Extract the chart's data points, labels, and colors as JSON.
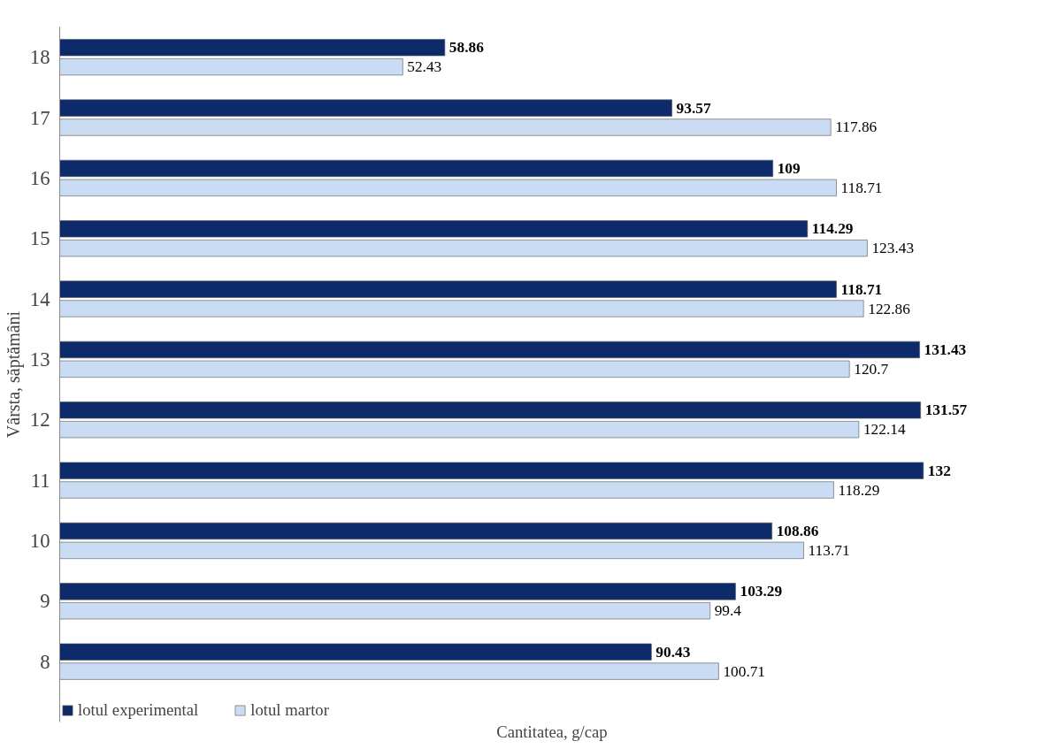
{
  "chart_data": {
    "type": "bar",
    "orientation": "horizontal",
    "ylabel": "Vârsta, săptămâni",
    "xlabel": "Cantitatea, g/cap",
    "categories": [
      "18",
      "17",
      "16",
      "15",
      "14",
      "13",
      "12",
      "11",
      "10",
      "9",
      "8"
    ],
    "series": [
      {
        "name": "lotul experimental",
        "color": "#0d2a6b",
        "values": [
          58.86,
          93.57,
          109,
          114.29,
          118.71,
          131.43,
          131.57,
          132,
          108.86,
          103.29,
          90.43
        ]
      },
      {
        "name": "lotul martor",
        "color": "#c9dcf3",
        "values": [
          52.43,
          117.86,
          118.71,
          123.43,
          122.86,
          120.7,
          122.14,
          118.29,
          113.71,
          99.4,
          100.71
        ]
      }
    ],
    "data_labels": true,
    "grid": false,
    "legend": "bottom left"
  }
}
